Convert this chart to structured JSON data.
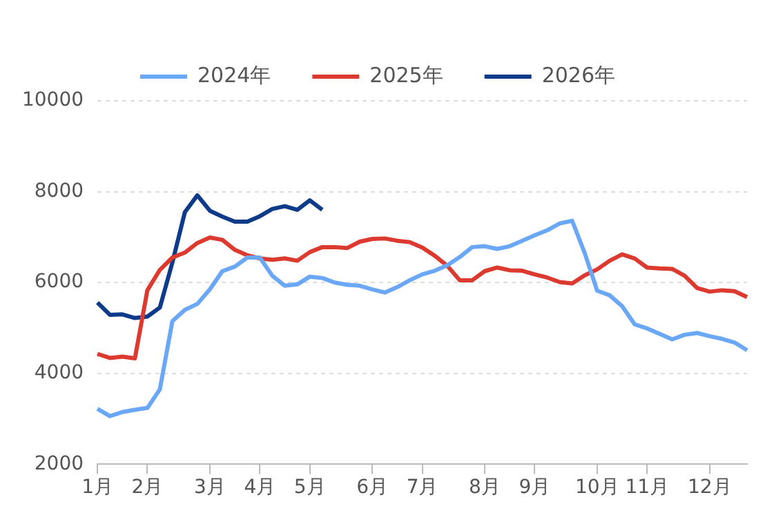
{
  "chart_data": {
    "type": "line",
    "categories": [
      "1月",
      null,
      null,
      null,
      "2月",
      null,
      null,
      null,
      null,
      "3月",
      null,
      null,
      null,
      "4月",
      null,
      null,
      null,
      "5月",
      null,
      null,
      null,
      null,
      "6月",
      null,
      null,
      null,
      "7月",
      null,
      null,
      null,
      null,
      "8月",
      null,
      null,
      null,
      "9月",
      null,
      null,
      null,
      null,
      "10月",
      null,
      null,
      null,
      "11月",
      null,
      null,
      null,
      null,
      "12月",
      null,
      null,
      null
    ],
    "series": [
      {
        "name": "2024年",
        "color": "#6aa8f7",
        "values": [
          3220,
          3060,
          3150,
          3200,
          3240,
          3650,
          5150,
          5400,
          5530,
          5850,
          6250,
          6350,
          6550,
          6550,
          6150,
          5930,
          5960,
          6130,
          6100,
          6000,
          5950,
          5930,
          5850,
          5780,
          5900,
          6050,
          6180,
          6260,
          6380,
          6560,
          6780,
          6800,
          6740,
          6800,
          6920,
          7040,
          7150,
          7300,
          7360,
          6650,
          5820,
          5720,
          5480,
          5080,
          4990,
          4870,
          4750,
          4850,
          4890,
          4820,
          4760,
          4680,
          4510
        ]
      },
      {
        "name": "2025年",
        "color": "#dd3a2f",
        "values": [
          4430,
          4340,
          4370,
          4330,
          5830,
          6280,
          6550,
          6660,
          6870,
          6990,
          6940,
          6720,
          6600,
          6530,
          6500,
          6530,
          6480,
          6670,
          6780,
          6780,
          6760,
          6900,
          6960,
          6970,
          6920,
          6890,
          6770,
          6590,
          6370,
          6050,
          6050,
          6250,
          6330,
          6270,
          6260,
          6180,
          6110,
          6010,
          5980,
          6160,
          6290,
          6480,
          6620,
          6530,
          6330,
          6310,
          6300,
          6150,
          5880,
          5800,
          5830,
          5810,
          5680
        ]
      },
      {
        "name": "2026年",
        "color": "#0d3b8a",
        "values": [
          5560,
          5290,
          5300,
          5220,
          5250,
          5450,
          6440,
          7550,
          7920,
          7580,
          7450,
          7340,
          7340,
          7460,
          7620,
          7680,
          7600,
          7810,
          7600,
          null,
          null,
          null,
          null,
          null,
          null,
          null,
          null,
          null,
          null,
          null,
          null,
          null,
          null,
          null,
          null,
          null,
          null,
          null,
          null,
          null,
          null,
          null,
          null,
          null,
          null,
          null,
          null,
          null,
          null,
          null,
          null,
          null,
          null
        ]
      }
    ],
    "ylim": [
      2000,
      10000
    ],
    "yticks": [
      2000,
      4000,
      6000,
      8000,
      10000
    ],
    "grid": "y",
    "legend": "top",
    "marker": "none",
    "line_style": "solid"
  }
}
